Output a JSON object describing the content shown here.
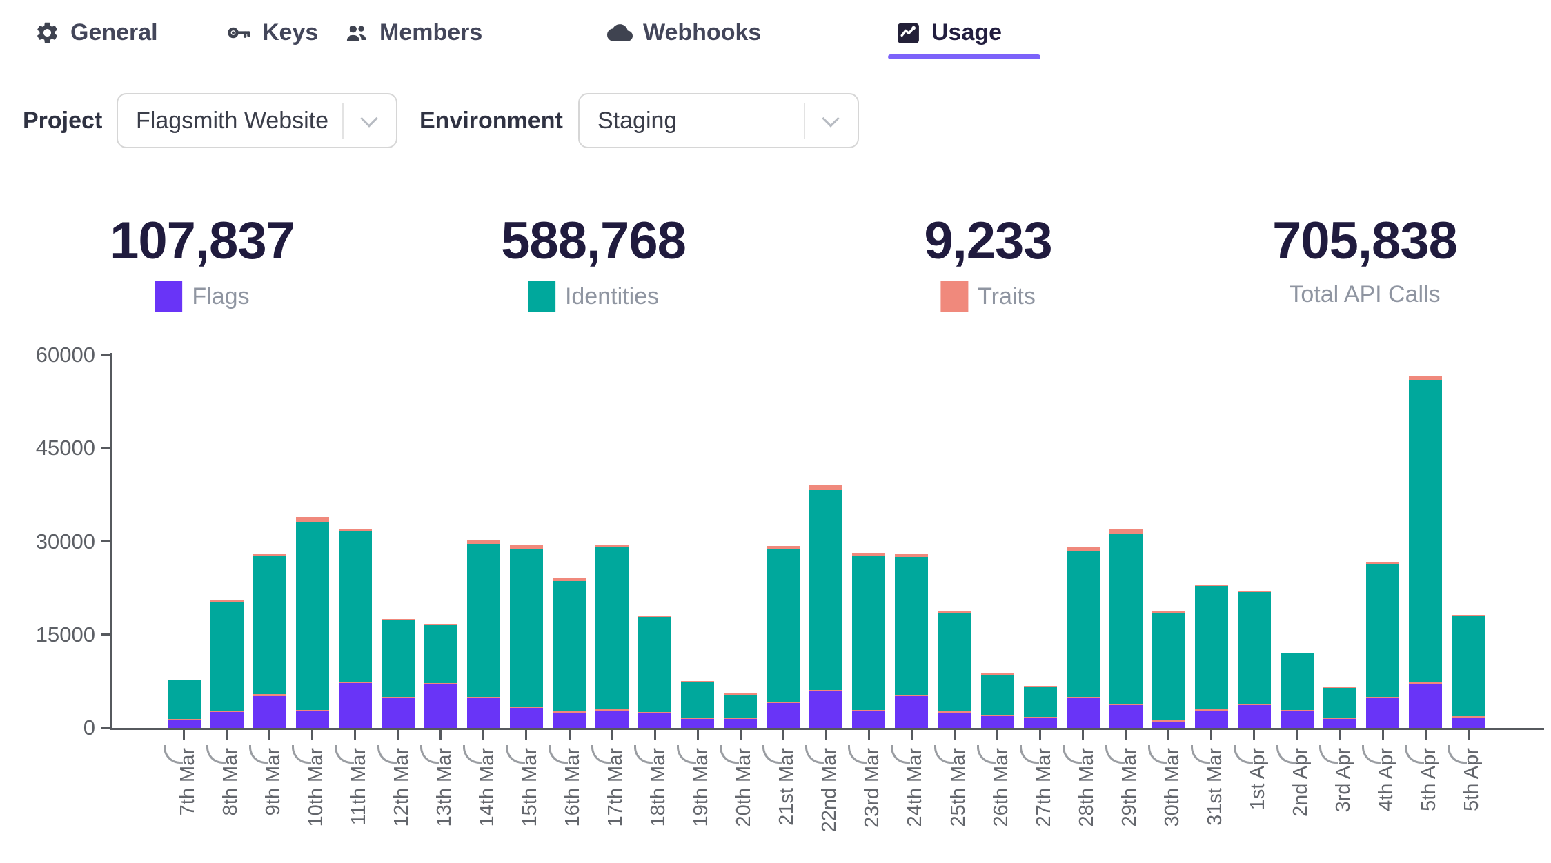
{
  "tabs": [
    {
      "label": "General"
    },
    {
      "label": "Keys"
    },
    {
      "label": "Members"
    },
    {
      "label": "Webhooks"
    },
    {
      "label": "Usage",
      "active": true
    }
  ],
  "filters": {
    "project_label": "Project",
    "project_value": "Flagsmith Website",
    "environment_label": "Environment",
    "environment_value": "Staging"
  },
  "stats": [
    {
      "value": "107,837",
      "label": "Flags",
      "color": "#6934f7"
    },
    {
      "value": "588,768",
      "label": "Identities",
      "color": "#00a89c"
    },
    {
      "value": "9,233",
      "label": "Traits",
      "color": "#f0897c"
    },
    {
      "value": "705,838",
      "label": "Total API Calls",
      "color": null
    }
  ],
  "chart_data": {
    "type": "bar",
    "stacked": true,
    "title": "",
    "xlabel": "",
    "ylabel": "",
    "ylim": [
      0,
      60000
    ],
    "yticks": [
      0,
      15000,
      30000,
      45000,
      60000
    ],
    "grid": false,
    "legend_position": "top-stat-cards",
    "categories": [
      "7th Mar",
      "8th Mar",
      "9th Mar",
      "10th Mar",
      "11th Mar",
      "12th Mar",
      "13th Mar",
      "14th Mar",
      "15th Mar",
      "16th Mar",
      "17th Mar",
      "18th Mar",
      "19th Mar",
      "20th Mar",
      "21st Mar",
      "22nd Mar",
      "23rd Mar",
      "24th Mar",
      "25th Mar",
      "26th Mar",
      "27th Mar",
      "28th Mar",
      "29th Mar",
      "30th Mar",
      "31st Mar",
      "1st Apr",
      "2nd Apr",
      "3rd Apr",
      "4th Apr",
      "5th Apr",
      "5th Apr"
    ],
    "series": [
      {
        "name": "Flags",
        "color": "#6934f7",
        "values": [
          1200,
          2550,
          5200,
          2650,
          7200,
          4750,
          7000,
          4750,
          3200,
          2450,
          2750,
          2350,
          1450,
          1450,
          4000,
          5900,
          2650,
          5100,
          2450,
          1900,
          1550,
          4750,
          3650,
          1000,
          2750,
          3650,
          2650,
          1450,
          4750,
          7100,
          1650
        ]
      },
      {
        "name": "Identities",
        "color": "#00a89c",
        "values": [
          6400,
          17750,
          22400,
          30400,
          24400,
          12650,
          9550,
          24850,
          25500,
          21200,
          26300,
          15550,
          5900,
          3900,
          24750,
          32400,
          25050,
          22400,
          15950,
          6650,
          5000,
          23750,
          27600,
          17400,
          20100,
          18200,
          9300,
          5000,
          21650,
          48800,
          16300
        ]
      },
      {
        "name": "Traits",
        "color": "#f0897c",
        "values": [
          150,
          200,
          450,
          900,
          330,
          120,
          120,
          700,
          700,
          500,
          500,
          220,
          120,
          120,
          500,
          700,
          450,
          500,
          330,
          120,
          120,
          600,
          700,
          330,
          220,
          220,
          120,
          120,
          330,
          700,
          220
        ]
      }
    ]
  }
}
